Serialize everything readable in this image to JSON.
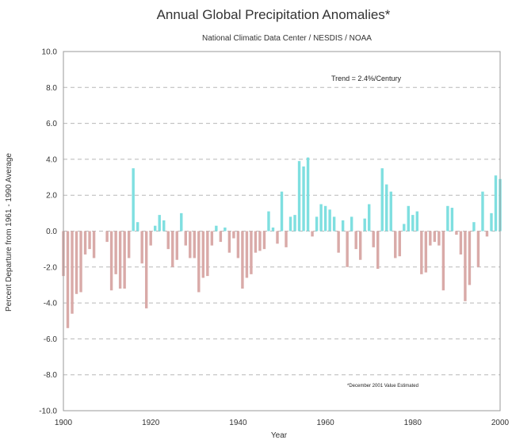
{
  "chart_data": {
    "type": "bar",
    "title": "Annual Global Precipitation Anomalies*",
    "subtitle": "National Climatic Data Center / NESDIS / NOAA",
    "xlabel": "Year",
    "ylabel": "Percent Departure from 1961 - 1990 Average",
    "trend_note": "Trend = 2.4%/Century",
    "footnote": "*December 2001 Value Estimated",
    "xlim": [
      1900,
      2000
    ],
    "ylim": [
      -10,
      10
    ],
    "x_ticks": [
      "1900",
      "1920",
      "1940",
      "1960",
      "1980",
      "2000"
    ],
    "y_ticks": [
      "10.0",
      "8.0",
      "6.0",
      "4.0",
      "2.0",
      "0.0",
      "-2.0",
      "-4.0",
      "-6.0",
      "-8.0",
      "-10.0"
    ],
    "grid": "horizontal dashed",
    "positive_color": "#7fdfe0",
    "negative_color": "#d9aaa8",
    "x": [
      1900,
      1901,
      1902,
      1903,
      1904,
      1905,
      1906,
      1907,
      1908,
      1909,
      1910,
      1911,
      1912,
      1913,
      1914,
      1915,
      1916,
      1917,
      1918,
      1919,
      1920,
      1921,
      1922,
      1923,
      1924,
      1925,
      1926,
      1927,
      1928,
      1929,
      1930,
      1931,
      1932,
      1933,
      1934,
      1935,
      1936,
      1937,
      1938,
      1939,
      1940,
      1941,
      1942,
      1943,
      1944,
      1945,
      1946,
      1947,
      1948,
      1949,
      1950,
      1951,
      1952,
      1953,
      1954,
      1955,
      1956,
      1957,
      1958,
      1959,
      1960,
      1961,
      1962,
      1963,
      1964,
      1965,
      1966,
      1967,
      1968,
      1969,
      1970,
      1971,
      1972,
      1973,
      1974,
      1975,
      1976,
      1977,
      1978,
      1979,
      1980,
      1981,
      1982,
      1983,
      1984,
      1985,
      1986,
      1987,
      1988,
      1989,
      1990,
      1991,
      1992,
      1993,
      1994,
      1995,
      1996,
      1997,
      1998,
      1999,
      2000
    ],
    "values": [
      -2.5,
      -5.4,
      -4.6,
      -3.5,
      -3.4,
      -1.3,
      -1.0,
      -1.5,
      null,
      null,
      -0.6,
      -3.3,
      -2.4,
      -3.2,
      -3.2,
      -1.5,
      3.5,
      0.5,
      -1.8,
      -4.3,
      -0.8,
      0.3,
      0.9,
      0.6,
      -1.0,
      -2.0,
      -1.6,
      1.0,
      -0.8,
      -1.5,
      -1.5,
      -3.4,
      -2.6,
      -2.5,
      -0.8,
      0.3,
      -0.6,
      0.2,
      -1.2,
      -0.4,
      -1.5,
      -3.2,
      -2.6,
      -2.4,
      -1.2,
      -1.1,
      -1.0,
      1.1,
      0.2,
      -0.7,
      2.2,
      -0.9,
      0.8,
      0.9,
      3.9,
      3.6,
      4.1,
      -0.3,
      0.8,
      1.5,
      1.4,
      1.2,
      0.8,
      -1.2,
      0.6,
      -2.0,
      0.8,
      -1.0,
      -1.6,
      0.7,
      1.5,
      -0.9,
      -2.1,
      3.5,
      2.6,
      2.2,
      -1.5,
      -1.4,
      0.4,
      1.4,
      0.9,
      1.1,
      -2.4,
      -2.3,
      -0.8,
      -0.6,
      -0.8,
      -3.3,
      1.4,
      1.3,
      -0.2,
      -1.3,
      -3.9,
      -3.0,
      0.5,
      -2.0,
      2.2,
      -0.3,
      1.0,
      3.1,
      2.9
    ]
  }
}
